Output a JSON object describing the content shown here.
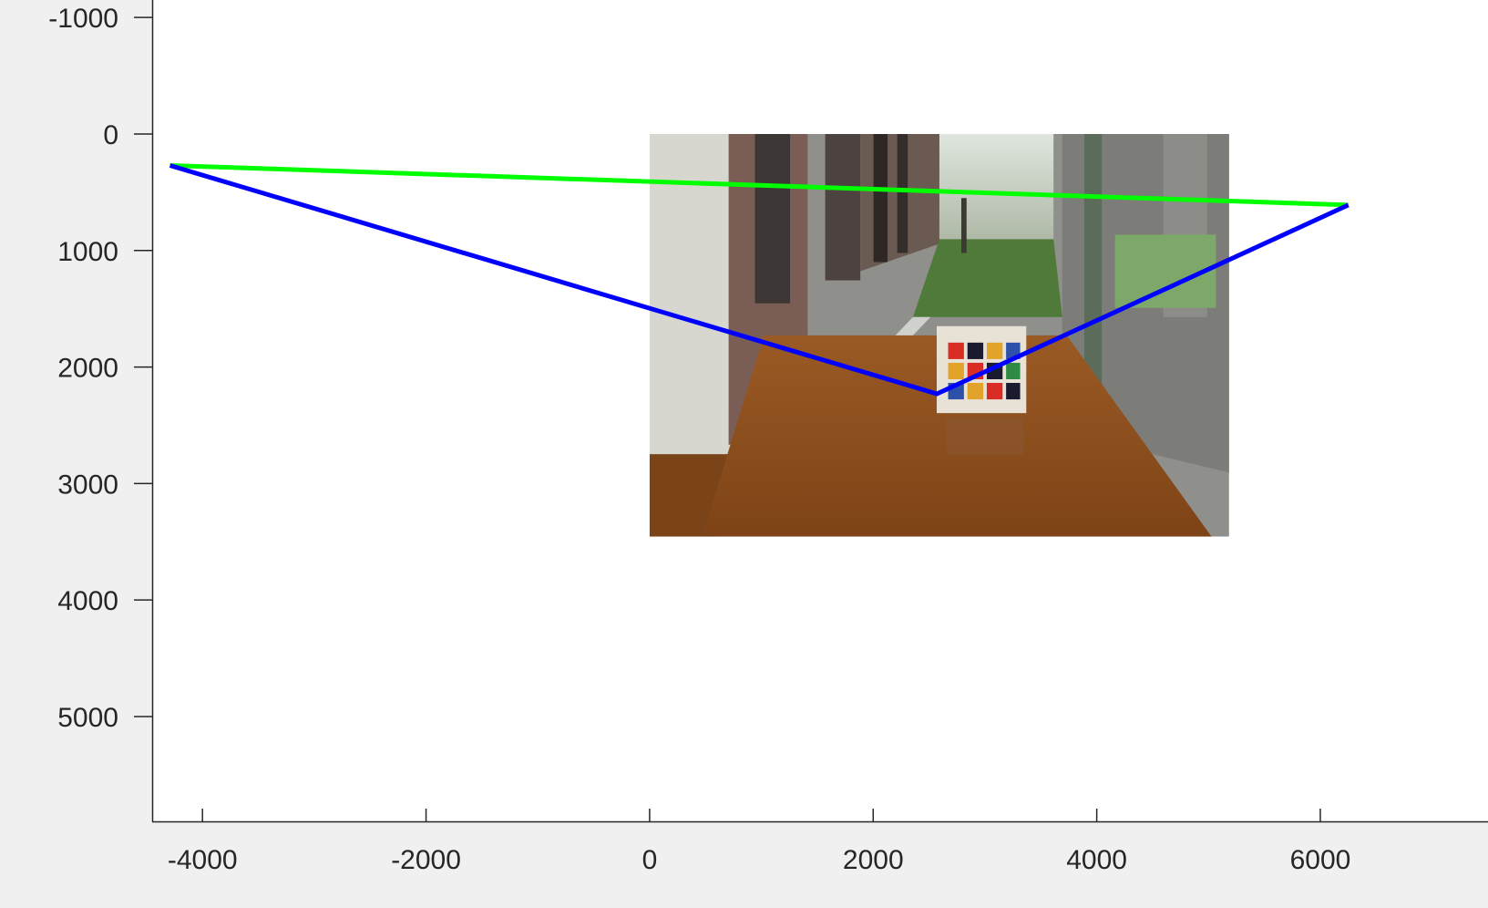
{
  "chart_data": {
    "type": "line",
    "title": "",
    "xlabel": "",
    "ylabel": "",
    "xlim": [
      -4450,
      7500
    ],
    "ylim": [
      -1150,
      5900
    ],
    "y_reversed": true,
    "grid": false,
    "legend": "none",
    "x_ticks": [
      -4000,
      -2000,
      0,
      2000,
      4000,
      6000
    ],
    "x_tick_labels": [
      "-4000",
      "-2000",
      "0",
      "2000",
      "4000",
      "6000"
    ],
    "y_ticks": [
      -1000,
      0,
      1000,
      2000,
      3000,
      4000,
      5000
    ],
    "y_tick_labels": [
      "-1000",
      "0",
      "1000",
      "2000",
      "3000",
      "4000",
      "5000"
    ],
    "background_image": {
      "description": "photo",
      "x_extent": [
        0,
        5184
      ],
      "y_extent": [
        0,
        3456
      ]
    },
    "series": [
      {
        "color": "#00ff00",
        "x": [
          -4290,
          6250
        ],
        "y": [
          270,
          610
        ]
      },
      {
        "color": "#0000ff",
        "x": [
          -4290,
          2570,
          6250
        ],
        "y": [
          270,
          2230,
          610
        ]
      }
    ]
  }
}
